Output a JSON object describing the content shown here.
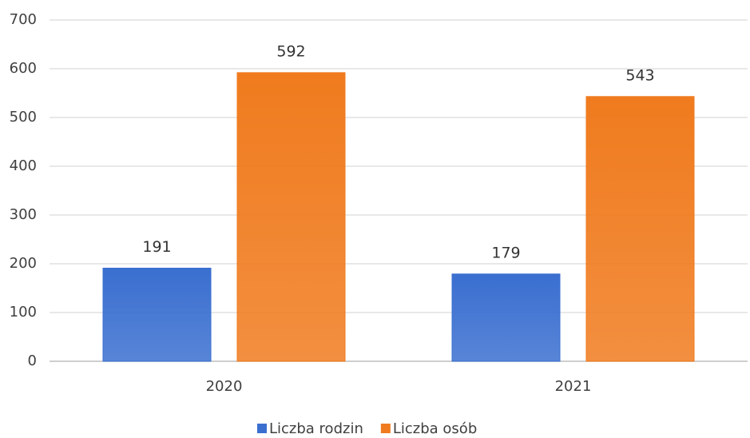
{
  "chart_data": {
    "type": "bar",
    "categories": [
      "2020",
      "2021"
    ],
    "series": [
      {
        "name": "Liczba rodzin",
        "color": "#3a6fd0",
        "values": [
          191,
          179
        ]
      },
      {
        "name": "Liczba osób",
        "color": "#f07b1e",
        "values": [
          592,
          543
        ]
      }
    ],
    "ylim": [
      0,
      700
    ],
    "yticks": [
      0,
      100,
      200,
      300,
      400,
      500,
      600,
      700
    ],
    "grid": true,
    "legend": "bottom"
  }
}
